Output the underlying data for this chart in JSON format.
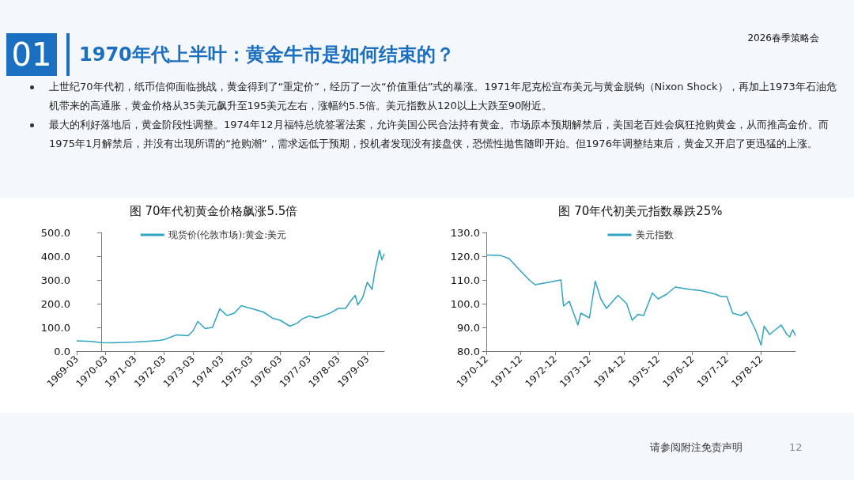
{
  "chart_data": [
    {
      "type": "other",
      "title": "1970年代上半叶：黄金牛市是如何结束的？",
      "annotations": [
        "01",
        "2026春季策略会",
        "上世纪70年代初，纸币信仰面临挑战，黄金得到了“重定价”，经历了一次“价值重估”式的暴涨。1971年尼克松宣布美元与黄金脱钩（Nixon Shock），再加上1973年石油危机带来的高通胀，黄金价格从35美元飙升至195美元左右，涨幅约5.5倍。美元指数从120以上大跌至90附近。",
        "最大的利好落地后，黄金阶段性调整。1974年12月福特总统签署法案，允许美国公民合法持有黄金。市场原本预期解禁后，美国老百姓会疯狂抢购黄金，从而推高金价。而1975年1月解禁后，并没有出现所谓的“抢购潮”，需求远低于预期，投机者发现没有接盘侠，恐慌性抛售随即开始。但1976年调整结束后，黄金又开启了更迅猛的上涨。",
        "请参阅附注免责声明",
        "12"
      ]
    },
    {
      "type": "line",
      "title": "图 70年代初黄金价格飙涨5.5倍",
      "legend": "top",
      "grid": false,
      "marker": "none",
      "xlim": [
        "1969-03",
        "1979-10"
      ],
      "xticks": [
        "1969-03",
        "1970-03",
        "1971-03",
        "1972-03",
        "1973-03",
        "1974-03",
        "1975-03",
        "1976-03",
        "1977-03",
        "1978-03",
        "1979-03"
      ],
      "ylim": [
        0,
        500
      ],
      "yticks": [
        {
          "value": 0,
          "label": "0.0"
        },
        {
          "value": 100,
          "label": "100.0"
        },
        {
          "value": 200,
          "label": "200.0"
        },
        {
          "value": 300,
          "label": "300.0"
        },
        {
          "value": 400,
          "label": "400.0"
        },
        {
          "value": 500,
          "label": "500.0"
        }
      ],
      "series": [
        {
          "name": "现货价(伦敦市场):黄金:美元",
          "color": "#2fa4c2",
          "x": [
            "1969-03",
            "1969-09",
            "1970-01",
            "1970-06",
            "1971-03",
            "1971-09",
            "1972-01",
            "1972-03",
            "1972-06",
            "1972-08",
            "1973-01",
            "1973-03",
            "1973-05",
            "1973-08",
            "1973-11",
            "1974-02",
            "1974-05",
            "1974-08",
            "1974-11",
            "1975-01",
            "1975-03",
            "1975-08",
            "1975-12",
            "1976-03",
            "1976-07",
            "1976-10",
            "1976-12",
            "1977-03",
            "1977-06",
            "1977-09",
            "1977-12",
            "1978-03",
            "1978-06",
            "1978-08",
            "1978-10",
            "1978-11",
            "1979-01",
            "1979-03",
            "1979-05",
            "1979-06",
            "1979-08",
            "1979-09",
            "1979-10"
          ],
          "values": [
            43,
            41,
            36,
            35,
            38,
            42,
            45,
            48,
            60,
            68,
            65,
            85,
            125,
            95,
            100,
            178,
            150,
            160,
            192,
            185,
            180,
            165,
            138,
            130,
            105,
            118,
            135,
            148,
            140,
            150,
            162,
            180,
            180,
            210,
            235,
            195,
            225,
            290,
            260,
            330,
            425,
            385,
            410
          ]
        }
      ]
    },
    {
      "type": "line",
      "title": "图 70年代初美元指数暴跌25%",
      "legend": "top",
      "grid": false,
      "marker": "none",
      "xlim": [
        "1970-12",
        "1979-12"
      ],
      "xticks": [
        "1970-12",
        "1971-12",
        "1972-12",
        "1973-12",
        "1974-12",
        "1975-12",
        "1976-12",
        "1977-12",
        "1978-12"
      ],
      "ylim": [
        80,
        130
      ],
      "yticks": [
        {
          "value": 80,
          "label": "80.0"
        },
        {
          "value": 90,
          "label": "90.0"
        },
        {
          "value": 100,
          "label": "100.0"
        },
        {
          "value": 110,
          "label": "110.0"
        },
        {
          "value": 120,
          "label": "120.0"
        },
        {
          "value": 130,
          "label": "130.0"
        }
      ],
      "series": [
        {
          "name": "美元指数",
          "color": "#2fa4c2",
          "x": [
            "1970-12",
            "1971-05",
            "1971-08",
            "1971-11",
            "1972-03",
            "1972-05",
            "1972-09",
            "1973-02",
            "1973-03",
            "1973-05",
            "1973-08",
            "1973-09",
            "1973-12",
            "1974-02",
            "1974-04",
            "1974-06",
            "1974-10",
            "1975-01",
            "1975-03",
            "1975-05",
            "1975-07",
            "1975-10",
            "1975-12",
            "1976-03",
            "1976-06",
            "1976-11",
            "1977-03",
            "1977-08",
            "1977-10",
            "1977-12",
            "1978-02",
            "1978-05",
            "1978-07",
            "1978-10",
            "1978-12",
            "1979-01",
            "1979-03",
            "1979-07",
            "1979-09",
            "1979-10",
            "1979-11",
            "1979-12"
          ],
          "values": [
            120.5,
            120.3,
            119,
            115,
            110,
            108,
            108.8,
            110,
            99,
            101,
            91,
            96,
            94,
            109.5,
            102,
            98,
            103.5,
            100,
            93,
            95.5,
            95,
            104.5,
            102,
            104,
            107,
            106,
            105.5,
            104,
            103,
            103,
            96,
            95,
            96.5,
            89,
            82.5,
            90.5,
            87,
            91,
            87,
            86,
            89,
            86.5
          ]
        }
      ]
    }
  ]
}
